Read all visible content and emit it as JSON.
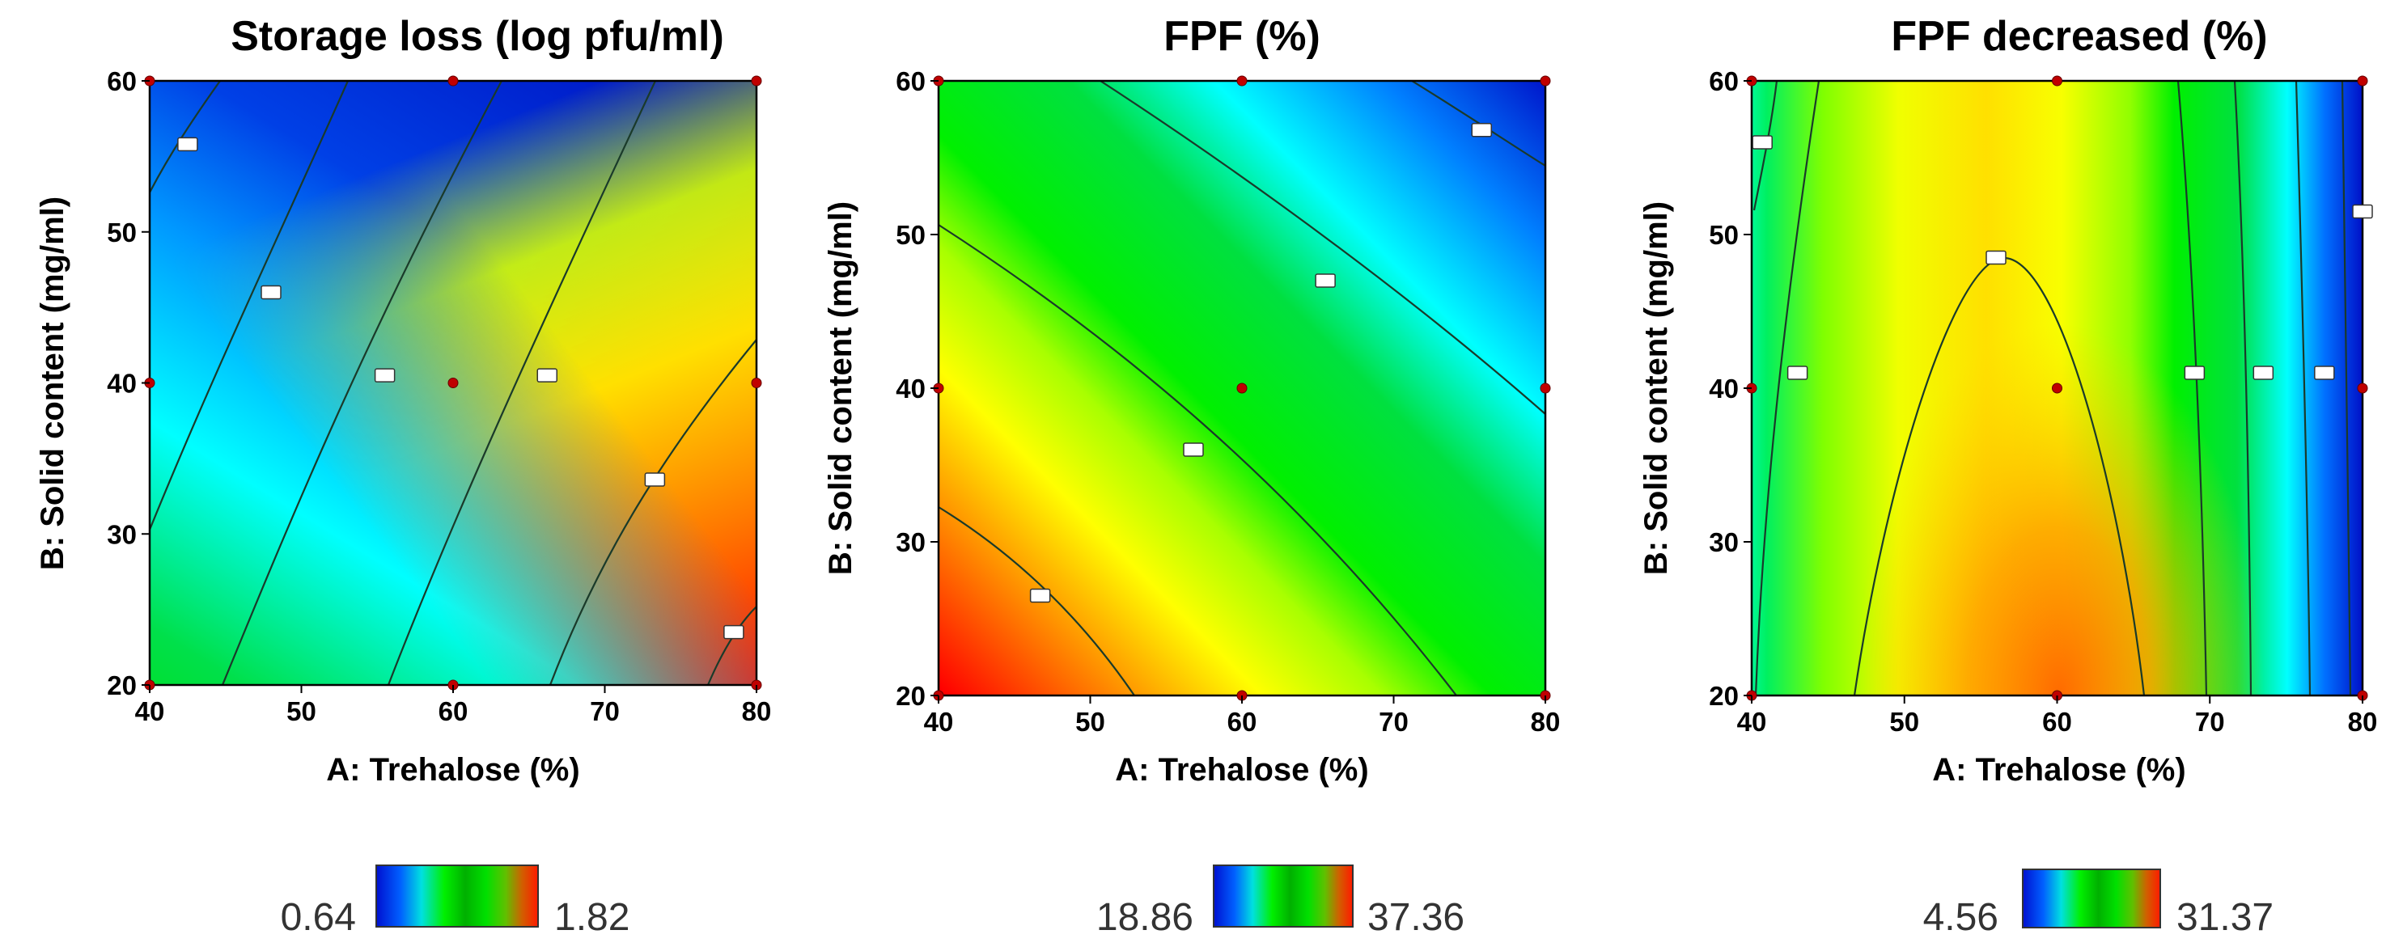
{
  "chart_data": [
    {
      "type": "contour",
      "title": "Storage loss (log pfu/ml)",
      "xlabel": "A: Trehalose (%)",
      "ylabel": "B: Solid content (mg/ml)",
      "xlim": [
        40,
        80
      ],
      "ylim": [
        20,
        60
      ],
      "xticks": [
        "40",
        "50",
        "60",
        "70",
        "80"
      ],
      "yticks": [
        "20",
        "30",
        "40",
        "50",
        "60"
      ],
      "range": [
        0.64,
        1.82
      ],
      "legend": {
        "min_label": "0.64",
        "max_label": "1.82"
      },
      "design_points": [
        [
          40,
          20
        ],
        [
          60,
          20
        ],
        [
          80,
          20
        ],
        [
          40,
          40
        ],
        [
          60,
          40
        ],
        [
          80,
          40
        ],
        [
          40,
          60
        ],
        [
          60,
          60
        ],
        [
          80,
          60
        ]
      ],
      "contour_flags": [
        [
          42.5,
          55.8
        ],
        [
          48,
          46
        ],
        [
          55.5,
          40.5
        ],
        [
          66.2,
          40.5
        ],
        [
          73.3,
          33.6
        ],
        [
          78.5,
          23.5
        ]
      ]
    },
    {
      "type": "contour",
      "title": "FPF (%)",
      "xlabel": "A: Trehalose (%)",
      "ylabel": "B: Solid content (mg/ml)",
      "xlim": [
        40,
        80
      ],
      "ylim": [
        20,
        60
      ],
      "xticks": [
        "40",
        "50",
        "60",
        "70",
        "80"
      ],
      "yticks": [
        "20",
        "30",
        "40",
        "50",
        "60"
      ],
      "range": [
        18.86,
        37.36
      ],
      "legend": {
        "min_label": "18.86",
        "max_label": "37.36"
      },
      "design_points": [
        [
          40,
          20
        ],
        [
          60,
          20
        ],
        [
          80,
          20
        ],
        [
          40,
          40
        ],
        [
          60,
          40
        ],
        [
          80,
          40
        ],
        [
          40,
          60
        ],
        [
          60,
          60
        ],
        [
          80,
          60
        ]
      ],
      "contour_flags": [
        [
          46.7,
          26.5
        ],
        [
          56.8,
          36
        ],
        [
          65.5,
          47
        ],
        [
          75.8,
          56.8
        ]
      ]
    },
    {
      "type": "contour",
      "title": "FPF decreased (%)",
      "xlabel": "A: Trehalose (%)",
      "ylabel": "B: Solid content (mg/ml)",
      "xlim": [
        40,
        80
      ],
      "ylim": [
        20,
        60
      ],
      "xticks": [
        "40",
        "50",
        "60",
        "70",
        "80"
      ],
      "yticks": [
        "20",
        "30",
        "40",
        "50",
        "60"
      ],
      "range": [
        4.56,
        31.37
      ],
      "legend": {
        "min_label": "4.56",
        "max_label": "31.37"
      },
      "design_points": [
        [
          40,
          20
        ],
        [
          60,
          20
        ],
        [
          80,
          20
        ],
        [
          40,
          40
        ],
        [
          60,
          40
        ],
        [
          80,
          40
        ],
        [
          40,
          60
        ],
        [
          60,
          60
        ],
        [
          80,
          60
        ]
      ],
      "contour_flags": [
        [
          40.7,
          56
        ],
        [
          43,
          41
        ],
        [
          56,
          48.5
        ],
        [
          69,
          41
        ],
        [
          73.5,
          41
        ],
        [
          77.5,
          41
        ],
        [
          80,
          51.5
        ]
      ]
    }
  ]
}
